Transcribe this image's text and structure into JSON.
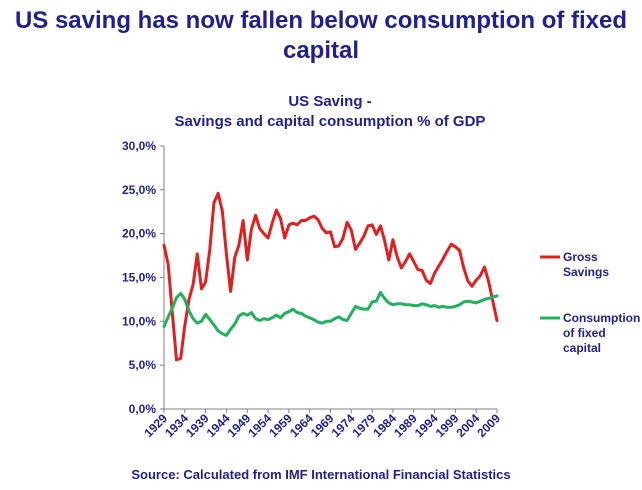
{
  "slide": {
    "title_line1": "US saving has now fallen below consumption of fixed",
    "title_line2": "capital",
    "source": "Source: Calculated from IMF International Financial Statistics"
  },
  "chart_data": {
    "type": "line",
    "title_line1": "US Saving -",
    "title_line2": "Savings and capital consumption % of GDP",
    "xlabel": "",
    "ylabel": "",
    "ylim": [
      0,
      30
    ],
    "y_ticks": [
      "0,0%",
      "5,0%",
      "10,0%",
      "15,0%",
      "20,0%",
      "25,0%",
      "30,0%"
    ],
    "x_tick_labels": [
      "1929",
      "1934",
      "1939",
      "1944",
      "1949",
      "1954",
      "1959",
      "1964",
      "1969",
      "1974",
      "1979",
      "1984",
      "1989",
      "1994",
      "1999",
      "2004",
      "2009"
    ],
    "x": [
      1929,
      1930,
      1931,
      1932,
      1933,
      1934,
      1935,
      1936,
      1937,
      1938,
      1939,
      1940,
      1941,
      1942,
      1943,
      1944,
      1945,
      1946,
      1947,
      1948,
      1949,
      1950,
      1951,
      1952,
      1953,
      1954,
      1955,
      1956,
      1957,
      1958,
      1959,
      1960,
      1961,
      1962,
      1963,
      1964,
      1965,
      1966,
      1967,
      1968,
      1969,
      1970,
      1971,
      1972,
      1973,
      1974,
      1975,
      1976,
      1977,
      1978,
      1979,
      1980,
      1981,
      1982,
      1983,
      1984,
      1985,
      1986,
      1987,
      1988,
      1989,
      1990,
      1991,
      1992,
      1993,
      1994,
      1995,
      1996,
      1997,
      1998,
      1999,
      2000,
      2001,
      2002,
      2003,
      2004,
      2005,
      2006,
      2007,
      2008,
      2009
    ],
    "series": [
      {
        "name": "Gross Savings",
        "color": "#e02020",
        "values": [
          18.7,
          16.5,
          11.0,
          5.6,
          5.8,
          9.5,
          12.5,
          14.2,
          17.7,
          13.7,
          14.5,
          18.2,
          23.5,
          24.6,
          22.6,
          17.7,
          13.4,
          17.3,
          18.7,
          21.5,
          17.0,
          20.5,
          22.1,
          20.6,
          20.0,
          19.5,
          21.2,
          22.7,
          21.7,
          19.5,
          21.0,
          21.2,
          21.0,
          21.5,
          21.5,
          21.8,
          22.0,
          21.6,
          20.6,
          20.1,
          20.2,
          18.5,
          18.6,
          19.5,
          21.3,
          20.4,
          18.2,
          18.9,
          19.7,
          20.9,
          21.0,
          19.9,
          20.9,
          19.2,
          17.0,
          19.3,
          17.4,
          16.1,
          16.8,
          17.7,
          16.8,
          15.9,
          15.8,
          14.7,
          14.3,
          15.5,
          16.3,
          17.1,
          18.0,
          18.8,
          18.5,
          18.1,
          16.1,
          14.6,
          14.0,
          14.7,
          15.2,
          16.2,
          14.5,
          12.3,
          10.1
        ]
      },
      {
        "name": "Consumption of fixed capital",
        "color": "#20b060",
        "values": [
          9.4,
          10.5,
          11.5,
          12.7,
          13.2,
          12.5,
          11.2,
          10.3,
          9.8,
          10.0,
          10.8,
          10.2,
          9.6,
          8.9,
          8.6,
          8.4,
          9.1,
          9.7,
          10.6,
          10.9,
          10.7,
          11.0,
          10.3,
          10.1,
          10.3,
          10.2,
          10.4,
          10.7,
          10.4,
          10.9,
          11.1,
          11.4,
          11.0,
          10.9,
          10.6,
          10.4,
          10.2,
          9.9,
          9.8,
          10.0,
          10.0,
          10.3,
          10.5,
          10.2,
          10.1,
          10.9,
          11.7,
          11.5,
          11.4,
          11.4,
          12.2,
          12.3,
          13.3,
          12.6,
          12.1,
          11.9,
          12.0,
          12.0,
          11.9,
          11.9,
          11.8,
          11.8,
          12.0,
          11.9,
          11.7,
          11.8,
          11.6,
          11.7,
          11.6,
          11.6,
          11.7,
          11.9,
          12.2,
          12.3,
          12.2,
          12.1,
          12.3,
          12.5,
          12.6,
          12.8,
          12.9
        ]
      }
    ],
    "legend": [
      {
        "line1": "Gross",
        "line2": "Savings",
        "line3": ""
      },
      {
        "line1": "Consumption",
        "line2": "of fixed",
        "line3": "capital"
      }
    ],
    "legend_position": "right",
    "grid": false
  }
}
